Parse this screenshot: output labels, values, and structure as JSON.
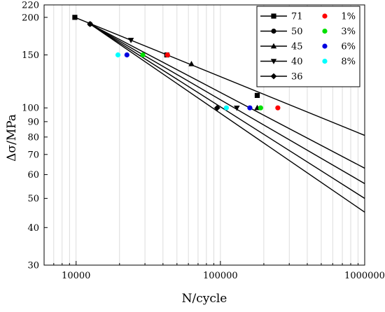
{
  "chart_data": {
    "type": "line",
    "xlabel": "N/cycle",
    "ylabel": "Δσ/MPa",
    "xscale": "log",
    "yscale": "log",
    "xlim": [
      6000,
      1000000
    ],
    "ylim": [
      30,
      220
    ],
    "x_ticks": [
      10000,
      100000,
      1000000
    ],
    "x_tick_labels": [
      "10000",
      "100000",
      "1000000"
    ],
    "y_ticks": [
      30,
      40,
      50,
      60,
      70,
      80,
      90,
      100,
      150,
      200,
      220
    ],
    "y_tick_labels": [
      "30",
      "40",
      "50",
      "60",
      "70",
      "80",
      "90",
      "100",
      "150",
      "200",
      "220"
    ],
    "grid": "vertical minor log gridlines",
    "legend_position": "top-right",
    "series": [
      {
        "name": "71",
        "marker": "square",
        "color": "#000000",
        "line": [
          [
            9800,
            200
          ],
          [
            1000000,
            81
          ]
        ],
        "points": [
          [
            9800,
            200
          ],
          [
            42500,
            150
          ],
          [
            180000,
            110
          ]
        ]
      },
      {
        "name": "50",
        "marker": "circle",
        "color": "#000000",
        "line": [
          [
            12500,
            190
          ],
          [
            1000000,
            63
          ]
        ],
        "points": [
          [
            12500,
            190
          ],
          [
            180000,
            110
          ]
        ]
      },
      {
        "name": "45",
        "marker": "triangle-up",
        "color": "#000000",
        "line": [
          [
            12500,
            190
          ],
          [
            1000000,
            56
          ]
        ],
        "points": [
          [
            63000,
            140
          ],
          [
            180000,
            100
          ]
        ]
      },
      {
        "name": "40",
        "marker": "triangle-down",
        "color": "#000000",
        "line": [
          [
            12500,
            190
          ],
          [
            1000000,
            50
          ]
        ],
        "points": [
          [
            24000,
            168
          ],
          [
            130000,
            100
          ]
        ]
      },
      {
        "name": "36",
        "marker": "diamond",
        "color": "#000000",
        "line": [
          [
            12500,
            190
          ],
          [
            1000000,
            45
          ]
        ],
        "points": [
          [
            12500,
            190
          ],
          [
            95000,
            100
          ]
        ]
      }
    ],
    "scatter_series": [
      {
        "name": "1%",
        "color": "#ff0000",
        "points": [
          [
            43000,
            150
          ],
          [
            250000,
            100
          ]
        ]
      },
      {
        "name": "3%",
        "color": "#00e000",
        "points": [
          [
            29000,
            150
          ],
          [
            190000,
            100
          ]
        ]
      },
      {
        "name": "6%",
        "color": "#0000e0",
        "points": [
          [
            22500,
            150
          ],
          [
            160000,
            100
          ]
        ]
      },
      {
        "name": "8%",
        "color": "#00ffff",
        "points": [
          [
            19500,
            150
          ],
          [
            110000,
            100
          ]
        ]
      }
    ]
  }
}
